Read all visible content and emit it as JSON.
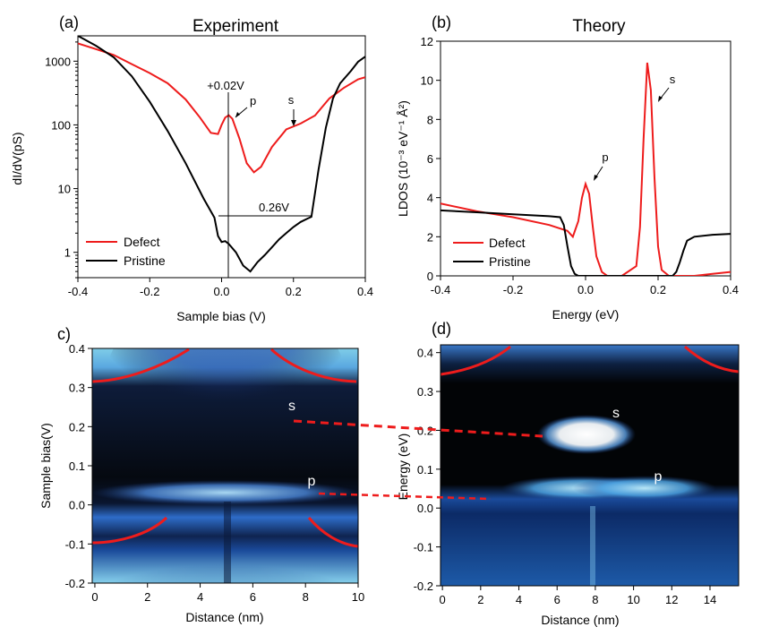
{
  "chart_data": [
    {
      "panel": "(a)",
      "type": "line",
      "title": "Experiment",
      "xlabel": "Sample bias (V)",
      "ylabel": "dI/dV(pS)",
      "yscale": "log",
      "xlim": [
        -0.4,
        0.4
      ],
      "ylim": [
        0.4,
        2500
      ],
      "xticks": [
        "-0.4",
        "-0.2",
        "0.0",
        "0.2",
        "0.4"
      ],
      "yticks": [
        "1",
        "10",
        "100",
        "1000"
      ],
      "legend": {
        "position": "bottom-left",
        "entries": [
          "Defect",
          "Pristine"
        ]
      },
      "annotations": {
        "v_line_label": "+0.02V",
        "gap_label": "0.26V",
        "peak_p": "p",
        "peak_s": "s"
      },
      "series": [
        {
          "name": "Defect",
          "color": "#ee1c1c",
          "x": [
            -0.4,
            -0.35,
            -0.3,
            -0.25,
            -0.2,
            -0.15,
            -0.1,
            -0.06,
            -0.03,
            -0.01,
            0.0,
            0.01,
            0.02,
            0.03,
            0.05,
            0.07,
            0.09,
            0.11,
            0.14,
            0.18,
            0.22,
            0.26,
            0.3,
            0.34,
            0.38,
            0.4
          ],
          "y": [
            1900,
            1550,
            1250,
            900,
            650,
            450,
            250,
            130,
            75,
            72,
            100,
            130,
            142,
            125,
            60,
            25,
            18,
            22,
            45,
            85,
            105,
            140,
            260,
            380,
            520,
            560
          ]
        },
        {
          "name": "Pristine",
          "color": "#000000",
          "x": [
            -0.4,
            -0.35,
            -0.3,
            -0.25,
            -0.2,
            -0.15,
            -0.1,
            -0.05,
            -0.02,
            -0.01,
            0.0,
            0.01,
            0.02,
            0.04,
            0.06,
            0.08,
            0.1,
            0.12,
            0.14,
            0.16,
            0.18,
            0.2,
            0.22,
            0.24,
            0.25,
            0.27,
            0.29,
            0.31,
            0.33,
            0.36,
            0.38,
            0.4
          ],
          "y": [
            2500,
            1750,
            1150,
            580,
            230,
            80,
            25,
            7,
            3.5,
            1.8,
            1.45,
            1.5,
            1.35,
            1.0,
            0.62,
            0.5,
            0.7,
            0.9,
            1.2,
            1.6,
            2.0,
            2.5,
            3.0,
            3.4,
            3.6,
            20,
            90,
            260,
            450,
            700,
            980,
            1180
          ]
        }
      ]
    },
    {
      "panel": "(b)",
      "type": "line",
      "title": "Theory",
      "xlabel": "Energy (eV)",
      "ylabel": "LDOS (10⁻³ eV⁻¹ Å²)",
      "xlim": [
        -0.4,
        0.4
      ],
      "ylim": [
        0,
        12
      ],
      "xticks": [
        "-0.4",
        "-0.2",
        "0.0",
        "0.2",
        "0.4"
      ],
      "yticks": [
        "0",
        "2",
        "4",
        "6",
        "8",
        "10",
        "12"
      ],
      "legend": {
        "position": "bottom-left",
        "entries": [
          "Defect",
          "Pristine"
        ]
      },
      "annotations": {
        "peak_p": "p",
        "peak_s": "s"
      },
      "series": [
        {
          "name": "Defect",
          "color": "#ee1c1c",
          "x": [
            -0.4,
            -0.3,
            -0.2,
            -0.1,
            -0.05,
            -0.035,
            -0.02,
            -0.01,
            0.0,
            0.01,
            0.02,
            0.03,
            0.045,
            0.06,
            0.1,
            0.14,
            0.15,
            0.16,
            0.17,
            0.18,
            0.19,
            0.2,
            0.21,
            0.23,
            0.25,
            0.3,
            0.35,
            0.4
          ],
          "y": [
            3.7,
            3.3,
            3.0,
            2.6,
            2.3,
            2.0,
            2.8,
            4.0,
            4.7,
            4.2,
            2.5,
            1.0,
            0.2,
            0.0,
            0.0,
            0.5,
            2.5,
            7.0,
            10.9,
            9.5,
            5.0,
            1.5,
            0.3,
            0.0,
            0.0,
            0.0,
            0.1,
            0.2
          ]
        },
        {
          "name": "Pristine",
          "color": "#000000",
          "x": [
            -0.4,
            -0.3,
            -0.2,
            -0.1,
            -0.07,
            -0.06,
            -0.05,
            -0.04,
            -0.03,
            -0.02,
            0.0,
            0.1,
            0.2,
            0.24,
            0.25,
            0.26,
            0.27,
            0.28,
            0.3,
            0.35,
            0.4
          ],
          "y": [
            3.35,
            3.25,
            3.15,
            3.05,
            3.0,
            2.6,
            1.5,
            0.5,
            0.1,
            0.0,
            0.0,
            0.0,
            0.0,
            0.0,
            0.2,
            0.7,
            1.3,
            1.8,
            2.0,
            2.1,
            2.15
          ]
        }
      ]
    },
    {
      "panel": "(c)",
      "type": "heatmap",
      "xlabel": "Distance (nm)",
      "ylabel": "Sample bias(V)",
      "xlim": [
        -0.1,
        10
      ],
      "ylim": [
        -0.2,
        0.4
      ],
      "xticks": [
        "0",
        "2",
        "4",
        "6",
        "8",
        "10"
      ],
      "yticks": [
        "-0.2",
        "-0.1",
        "0.0",
        "0.1",
        "0.2",
        "0.3",
        "0.4"
      ],
      "state_labels": [
        "s",
        "p"
      ]
    },
    {
      "panel": "(d)",
      "type": "heatmap",
      "xlabel": "Distance (nm)",
      "ylabel": "Energy (eV)",
      "xlim": [
        -0.1,
        15.5
      ],
      "ylim": [
        -0.2,
        0.42
      ],
      "xticks": [
        "0",
        "2",
        "4",
        "6",
        "8",
        "10",
        "12",
        "14"
      ],
      "yticks": [
        "-0.2",
        "-0.1",
        "0.0",
        "0.1",
        "0.2",
        "0.3",
        "0.4"
      ],
      "state_labels": [
        "s",
        "p"
      ]
    }
  ]
}
